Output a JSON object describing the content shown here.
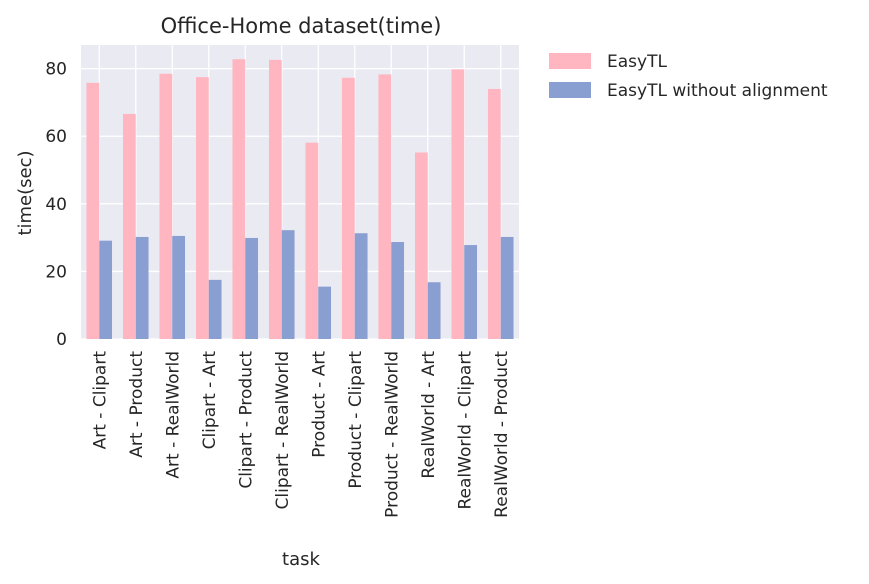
{
  "chart_data": {
    "type": "bar",
    "title": "Office-Home dataset(time)",
    "xlabel": "task",
    "ylabel": "time(sec)",
    "categories": [
      "Art - Clipart",
      "Art - Product",
      "Art - RealWorld",
      "Clipart - Art",
      "Clipart - Product",
      "Clipart - RealWorld",
      "Product - Art",
      "Product - Clipart",
      "Product - RealWorld",
      "RealWorld - Art",
      "RealWorld - Clipart",
      "RealWorld - Product"
    ],
    "series": [
      {
        "name": "EasyTL",
        "color": "#ffb6c1",
        "values": [
          75.8,
          66.6,
          78.5,
          77.5,
          82.8,
          82.6,
          58.1,
          77.3,
          78.3,
          55.2,
          79.8,
          74.0
        ]
      },
      {
        "name": "EasyTL without alignment",
        "color": "#8a9fd1",
        "values": [
          29.1,
          30.2,
          30.5,
          17.5,
          29.9,
          32.2,
          15.5,
          31.3,
          28.7,
          16.8,
          27.8,
          30.2
        ]
      }
    ],
    "yticks": [
      0,
      20,
      40,
      60,
      80
    ],
    "ylim": [
      0,
      87
    ],
    "grid": true,
    "legend_position": "outside-upper-right",
    "background_color": "#eaeaf2",
    "grid_color": "#ffffff"
  }
}
